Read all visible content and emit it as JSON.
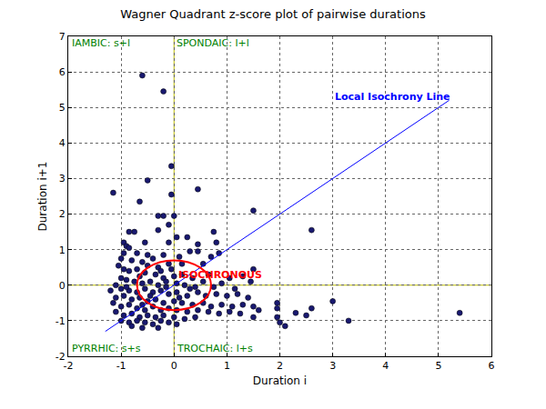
{
  "chart_data": {
    "type": "scatter",
    "title": "Wagner Quadrant z-score plot of pairwise durations",
    "x_label": "Duration i",
    "y_label": "Duration i+1",
    "xlim": [
      -2,
      6
    ],
    "ylim": [
      -2,
      7
    ],
    "xticks": [
      -2,
      -1,
      0,
      1,
      2,
      3,
      4,
      5,
      6
    ],
    "yticks": [
      -2,
      -1,
      0,
      1,
      2,
      3,
      4,
      5,
      6,
      7
    ],
    "grid": true,
    "marker": "circle",
    "color": "#191970",
    "x": [
      -0.6,
      -0.2,
      -0.05,
      0.45,
      -0.5,
      -1.15,
      -0.05,
      -0.65,
      1.5,
      -0.3,
      -0.2,
      0.0,
      -0.1,
      -0.3,
      0.05,
      -0.75,
      -0.85,
      0.25,
      0.75,
      2.6,
      -0.95,
      -0.9,
      -0.85,
      -0.55,
      -0.1,
      0.45,
      0.8,
      0.3,
      0.45,
      0.85,
      -0.95,
      -0.7,
      -0.5,
      -0.4,
      -0.2,
      -0.1,
      0.15,
      0.1,
      0.55,
      0.65,
      0.7,
      -1.0,
      -0.8,
      -0.6,
      -0.3,
      -1.05,
      -0.85,
      -0.7,
      -0.55,
      -0.35,
      -0.2,
      0.0,
      0.15,
      0.35,
      -1.0,
      -0.9,
      -0.75,
      -0.6,
      -0.45,
      -0.3,
      -0.15,
      0.05,
      0.2,
      0.4,
      0.55,
      0.75,
      0.9,
      1.05,
      1.15,
      1.3,
      1.5,
      1.45,
      -1.1,
      -1.0,
      -0.85,
      -0.7,
      -0.55,
      -0.4,
      -0.25,
      -0.1,
      0.05,
      0.25,
      0.45,
      0.6,
      0.8,
      1.0,
      1.2,
      1.4,
      -1.2,
      -1.1,
      -0.95,
      -0.8,
      -0.65,
      -0.5,
      -0.35,
      -0.2,
      0.0,
      0.15,
      0.35,
      0.55,
      0.7,
      0.9,
      1.1,
      1.3,
      1.5,
      1.6,
      -1.15,
      -1.0,
      -0.85,
      -0.7,
      -0.55,
      -0.4,
      -0.25,
      -0.1,
      0.05,
      0.25,
      0.45,
      0.65,
      0.85,
      1.05,
      1.25,
      -1.1,
      -0.95,
      -0.8,
      -0.65,
      -0.5,
      -0.35,
      -0.2,
      0.0,
      0.2,
      0.4,
      -1.0,
      -0.85,
      -0.7,
      -0.55,
      -0.4,
      -0.25,
      -0.1,
      0.05,
      -0.6,
      -0.3,
      -0.8,
      1.5,
      1.95,
      1.95,
      1.95,
      2.0,
      2.1,
      2.3,
      2.5,
      2.6,
      3.0,
      3.3,
      5.4,
      -0.05,
      -0.25,
      0.3,
      -0.45,
      -0.9,
      -0.6,
      0.1,
      -0.15,
      -0.5,
      -0.95,
      -0.65
    ],
    "values": [
      5.9,
      5.45,
      3.35,
      2.7,
      2.95,
      2.6,
      2.55,
      2.35,
      2.1,
      1.95,
      1.95,
      1.95,
      1.7,
      1.55,
      1.35,
      1.5,
      1.5,
      1.35,
      1.5,
      1.55,
      1.2,
      1.1,
      1.05,
      1.2,
      1.2,
      1.15,
      1.2,
      0.95,
      0.95,
      0.9,
      0.9,
      0.9,
      0.85,
      0.75,
      0.85,
      0.6,
      0.6,
      0.8,
      0.6,
      0.3,
      0.8,
      0.75,
      0.7,
      0.65,
      0.5,
      0.55,
      0.4,
      0.45,
      0.35,
      0.3,
      0.2,
      0.25,
      0.3,
      0.2,
      0.2,
      0.15,
      0.1,
      0.05,
      0.1,
      0.0,
      -0.05,
      0.05,
      0.0,
      -0.05,
      0.1,
      -0.05,
      0.05,
      0.2,
      -0.1,
      0.25,
      0.45,
      0.1,
      0.0,
      -0.1,
      -0.15,
      -0.2,
      -0.1,
      -0.2,
      -0.15,
      -0.25,
      -0.2,
      -0.3,
      -0.2,
      -0.3,
      -0.25,
      -0.3,
      -0.25,
      -0.35,
      -0.15,
      -0.35,
      -0.3,
      -0.4,
      -0.35,
      -0.45,
      -0.4,
      -0.5,
      -0.45,
      -0.5,
      -0.55,
      -0.5,
      -0.6,
      -0.55,
      -0.6,
      -0.55,
      -0.6,
      -0.7,
      -0.5,
      -0.6,
      -0.55,
      -0.65,
      -0.7,
      -0.6,
      -0.7,
      -0.65,
      -0.7,
      -0.75,
      -0.7,
      -0.75,
      -0.8,
      -0.75,
      -0.8,
      -0.75,
      -0.85,
      -0.8,
      -0.9,
      -0.85,
      -0.9,
      -0.85,
      -0.9,
      -0.95,
      -0.9,
      -1.0,
      -1.05,
      -1.0,
      -1.05,
      -1.1,
      -1.0,
      -1.05,
      -1.1,
      -1.2,
      -1.2,
      -1.15,
      -0.9,
      -0.5,
      -0.65,
      -0.9,
      -1.05,
      -1.15,
      -0.78,
      -0.85,
      -0.65,
      -0.45,
      -1.0,
      -0.78,
      0.45,
      0.4,
      -0.1,
      -0.3,
      -0.05,
      -0.55,
      -0.35,
      0.1,
      0.55,
      0.45,
      0.25
    ],
    "reference_lines": [
      {
        "axis": "x",
        "value": 0,
        "color": "#bfbf00"
      },
      {
        "axis": "y",
        "value": 0,
        "color": "#bfbf00"
      }
    ],
    "isochrony_line": {
      "label": "Local Isochrony Line",
      "x": [
        -1.3,
        5.2
      ],
      "values": [
        -1.3,
        5.2
      ],
      "color": "#0000ff",
      "label_at": [
        3.0,
        5.3
      ]
    },
    "ellipse": {
      "label": "ISOCHRONOUS",
      "center": [
        0,
        0
      ],
      "rx": 0.7,
      "ry": 0.7,
      "color": "#ff0000",
      "label_at": [
        0.05,
        0.3
      ]
    },
    "quadrant_labels": [
      {
        "text": "IAMBIC: s+l",
        "x": -1.97,
        "y": 6.8,
        "color": "#008000"
      },
      {
        "text": "SPONDAIC: l+l",
        "x": 0.02,
        "y": 6.8,
        "color": "#008000"
      },
      {
        "text": "PYRRHIC: s+s",
        "x": -1.97,
        "y": -1.78,
        "color": "#008000"
      },
      {
        "text": "TROCHAIC: l+s",
        "x": 0.02,
        "y": -1.78,
        "color": "#008000"
      }
    ]
  }
}
